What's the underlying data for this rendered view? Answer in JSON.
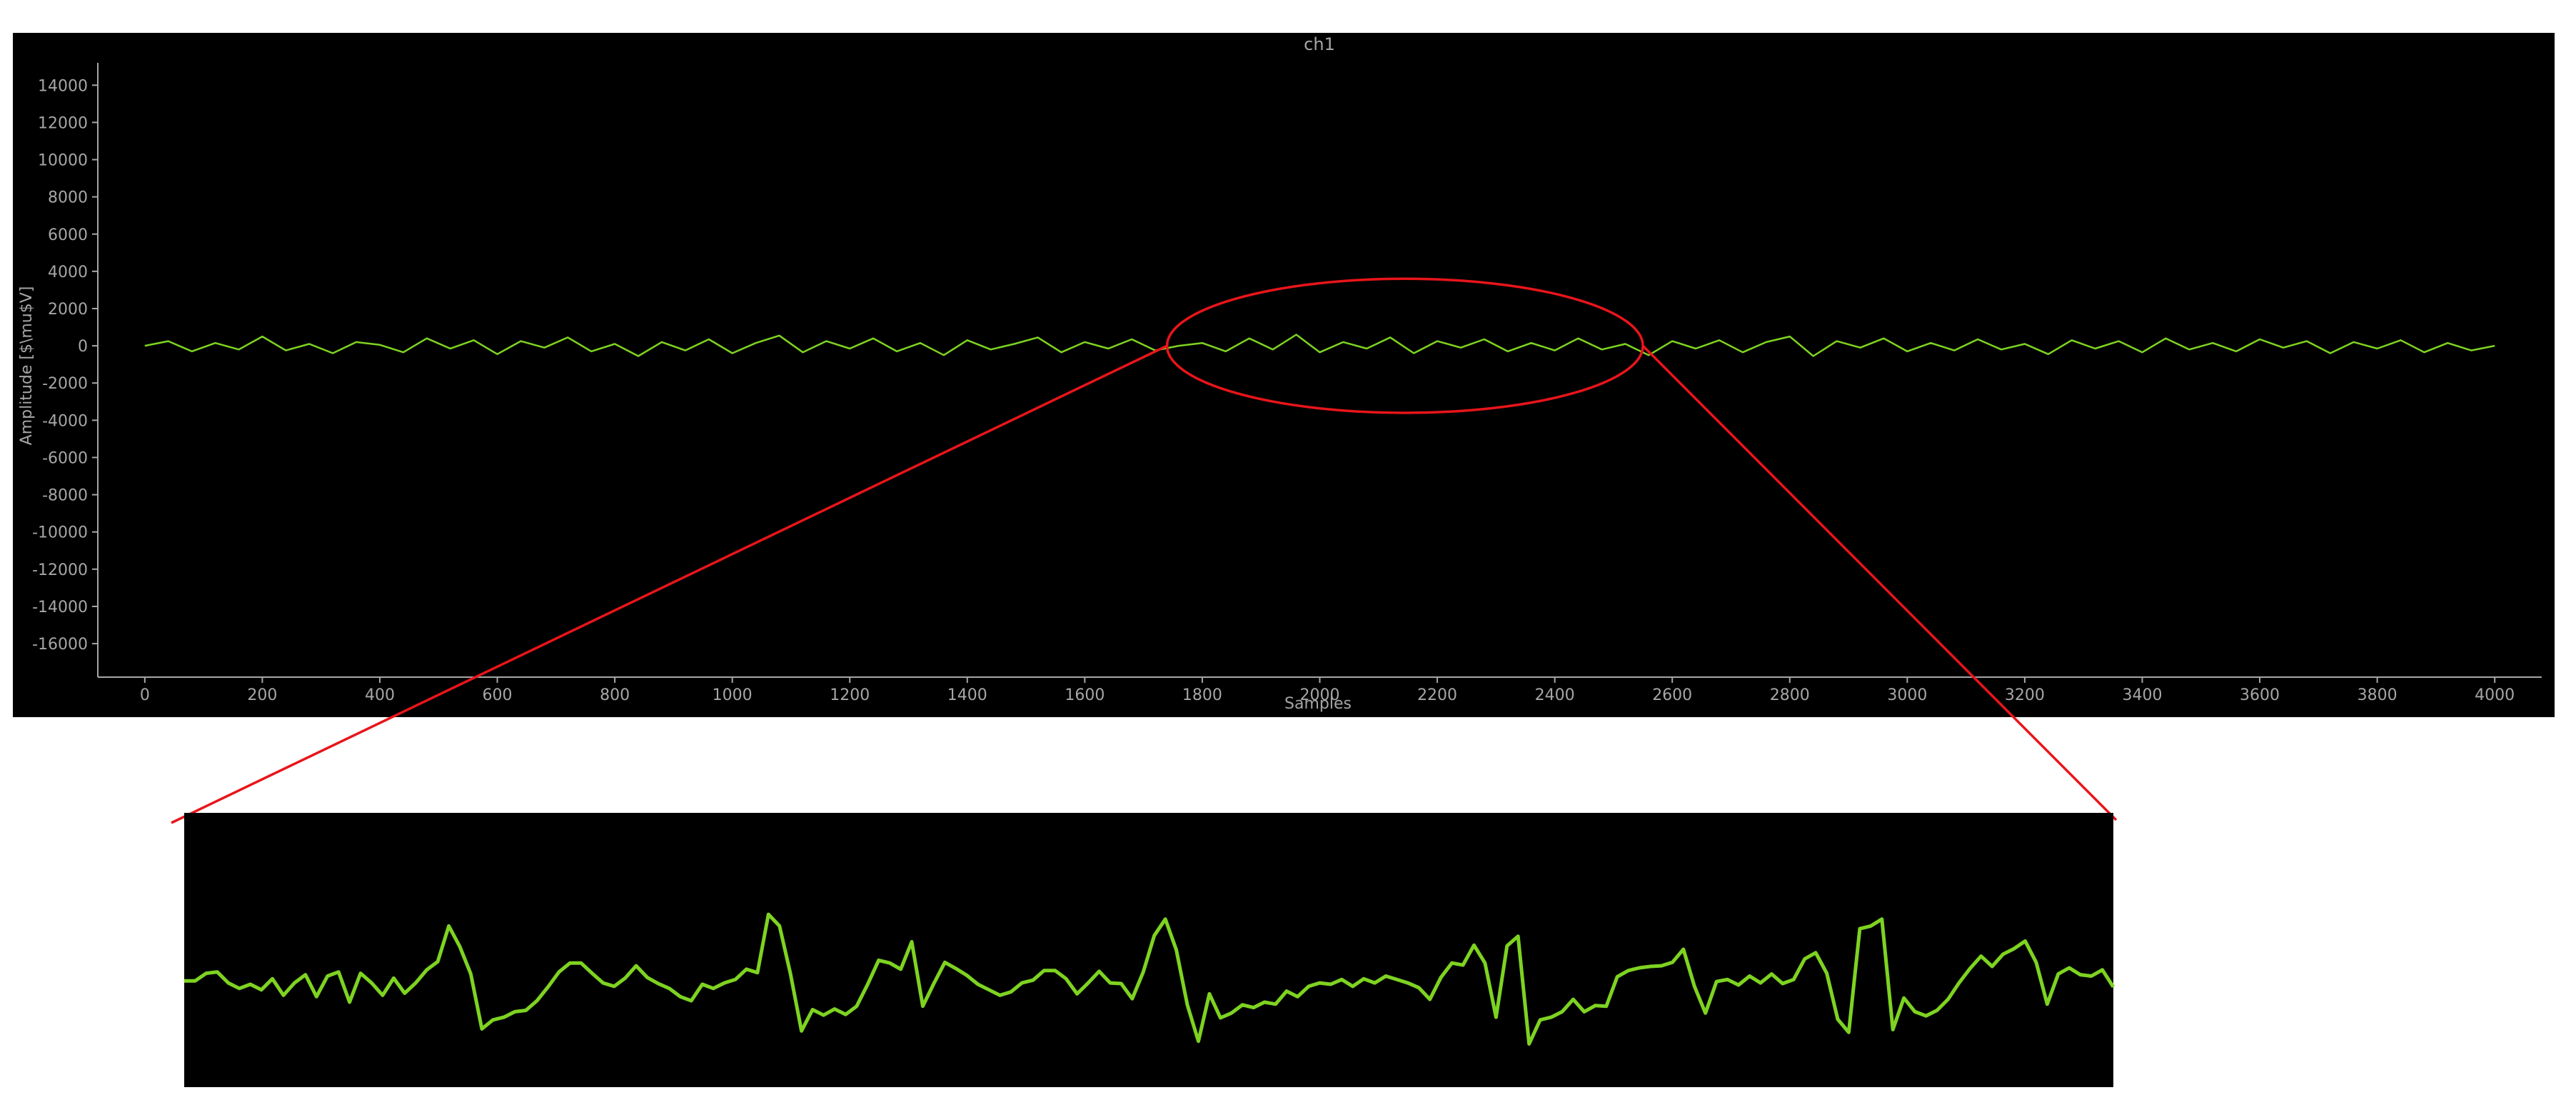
{
  "chart_data": [
    {
      "id": "main",
      "type": "line",
      "title": "ch1",
      "xlabel": "Samples",
      "ylabel": "Amplitude [$\\mu$V]",
      "xlim": [
        -80,
        4080
      ],
      "ylim": [
        -17800,
        15200
      ],
      "x_ticks": [
        0,
        200,
        400,
        600,
        800,
        1000,
        1200,
        1400,
        1600,
        1800,
        2000,
        2200,
        2400,
        2600,
        2800,
        3000,
        3200,
        3400,
        3600,
        3800,
        4000
      ],
      "x_tick_labels": [
        "0",
        "200",
        "400",
        "600",
        "800",
        "1000",
        "1200",
        "1400",
        "1600",
        "1800",
        "2000",
        "2200",
        "2400",
        "2600",
        "2800",
        "3000",
        "3200",
        "3400",
        "3600",
        "3800",
        "4000"
      ],
      "y_ticks": [
        14000,
        12000,
        10000,
        8000,
        6000,
        4000,
        2000,
        0,
        -2000,
        -4000,
        -6000,
        -8000,
        -10000,
        -12000,
        -14000,
        -16000
      ],
      "y_tick_labels": [
        "14000",
        "12000",
        "10000",
        "8000",
        "6000",
        "4000",
        "2000",
        "0",
        "-2000",
        "-4000",
        "-6000",
        "-8000",
        "-10000",
        "-12000",
        "-14000",
        "-16000"
      ],
      "grid": false,
      "background": "#000000",
      "text_color": "#a6a6a6",
      "series": [
        {
          "color": "#7ed321",
          "x_range": [
            0,
            4000
          ],
          "x": [
            0,
            40,
            80,
            120,
            160,
            200,
            240,
            280,
            320,
            360,
            400,
            440,
            480,
            520,
            560,
            600,
            640,
            680,
            720,
            760,
            800,
            840,
            880,
            920,
            960,
            1000,
            1040,
            1080,
            1120,
            1160,
            1200,
            1240,
            1280,
            1320,
            1360,
            1400,
            1440,
            1480,
            1520,
            1560,
            1600,
            1640,
            1680,
            1720,
            1760,
            1800,
            1840,
            1880,
            1920,
            1960,
            2000,
            2040,
            2080,
            2120,
            2160,
            2200,
            2240,
            2280,
            2320,
            2360,
            2400,
            2440,
            2480,
            2520,
            2560,
            2600,
            2640,
            2680,
            2720,
            2760,
            2800,
            2840,
            2880,
            2920,
            2960,
            3000,
            3040,
            3080,
            3120,
            3160,
            3200,
            3240,
            3280,
            3320,
            3360,
            3400,
            3440,
            3480,
            3520,
            3560,
            3600,
            3640,
            3680,
            3720,
            3760,
            3800,
            3840,
            3880,
            3920,
            3960,
            4000
          ],
          "values": [
            0,
            250,
            -300,
            150,
            -200,
            500,
            -250,
            100,
            -400,
            200,
            50,
            -350,
            400,
            -150,
            300,
            -450,
            250,
            -100,
            450,
            -300,
            100,
            -550,
            200,
            -250,
            350,
            -400,
            150,
            550,
            -350,
            250,
            -150,
            400,
            -300,
            150,
            -500,
            300,
            -200,
            100,
            450,
            -350,
            200,
            -150,
            350,
            -250,
            0,
            150,
            -300,
            400,
            -200,
            600,
            -350,
            200,
            -150,
            450,
            -400,
            250,
            -100,
            350,
            -300,
            150,
            -250,
            400,
            -200,
            100,
            -500,
            250,
            -150,
            300,
            -350,
            200,
            500,
            -550,
            250,
            -100,
            400,
            -300,
            150,
            -250,
            350,
            -200,
            100,
            -450,
            300,
            -150,
            250,
            -350,
            400,
            -200,
            150,
            -300,
            350,
            -100,
            250,
            -400,
            200,
            -150,
            300,
            -350,
            150,
            -250,
            0
          ]
        }
      ],
      "highlight": {
        "type": "ellipse",
        "x_range": [
          1740,
          2550
        ],
        "y_range": [
          -3600,
          3600
        ],
        "color": "#e8151a"
      }
    },
    {
      "id": "zoom",
      "type": "line",
      "title": "",
      "x_range": [
        1740,
        2550
      ],
      "background": "#000000",
      "series": [
        {
          "color": "#7ed321",
          "values": [
            150,
            150,
            260,
            280,
            120,
            40,
            100,
            20,
            180,
            -60,
            120,
            240,
            -80,
            220,
            280,
            -160,
            260,
            120,
            -60,
            190,
            -30,
            120,
            310,
            430,
            950,
            650,
            250,
            -550,
            -420,
            -380,
            -300,
            -280,
            -140,
            60,
            280,
            410,
            410,
            260,
            120,
            70,
            190,
            370,
            200,
            110,
            40,
            -80,
            -140,
            100,
            40,
            120,
            170,
            320,
            270,
            1120,
            950,
            250,
            -580,
            -270,
            -350,
            -260,
            -340,
            -220,
            100,
            450,
            410,
            320,
            720,
            -220,
            110,
            420,
            330,
            230,
            100,
            20,
            -60,
            -10,
            120,
            160,
            300,
            300,
            180,
            -40,
            120,
            290,
            120,
            110,
            -110,
            280,
            810,
            1050,
            600,
            -200,
            -730,
            -40,
            -390,
            -320,
            -200,
            -240,
            -160,
            -190,
            0,
            -80,
            70,
            120,
            100,
            170,
            70,
            180,
            120,
            220,
            170,
            120,
            50,
            -120,
            200,
            410,
            380,
            670,
            410,
            -380,
            660,
            800,
            -770,
            -420,
            -380,
            -300,
            -120,
            -300,
            -210,
            -220,
            210,
            300,
            340,
            360,
            370,
            420,
            610,
            70,
            -320,
            140,
            170,
            90,
            220,
            120,
            250,
            110,
            170,
            470,
            560,
            260,
            -410,
            -600,
            910,
            950,
            1050,
            -560,
            -100,
            -300,
            -360,
            -280,
            -120,
            120,
            330,
            510,
            360,
            540,
            620,
            730,
            420,
            -190,
            250,
            340,
            240,
            220,
            310,
            60
          ]
        }
      ]
    }
  ]
}
